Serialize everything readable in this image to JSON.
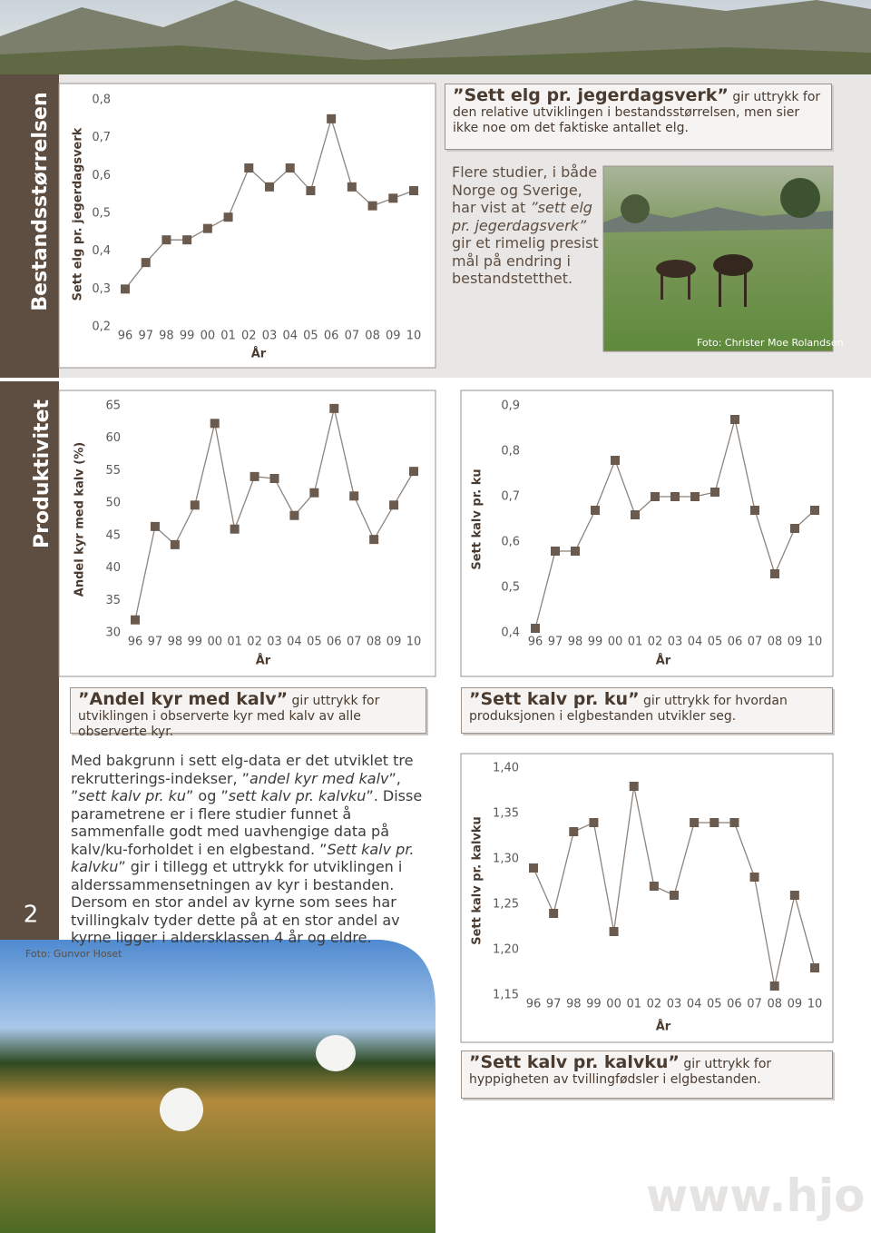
{
  "chart_data": [
    {
      "type": "line",
      "ylabel": "Sett elg pr. jegerdagsverk",
      "xlabel": "År",
      "color": "#6b5a4e",
      "line_color": "#8d837b",
      "categories": [
        "96",
        "97",
        "98",
        "99",
        "00",
        "01",
        "02",
        "03",
        "04",
        "05",
        "06",
        "07",
        "08",
        "09",
        "10"
      ],
      "values": [
        0.3,
        0.37,
        0.43,
        0.43,
        0.46,
        0.49,
        0.62,
        0.57,
        0.62,
        0.56,
        0.75,
        0.57,
        0.52,
        0.54,
        0.56
      ],
      "ylim": [
        0.2,
        0.8
      ],
      "yticks": [
        {
          "value": 0.2,
          "label": "0,2"
        },
        {
          "value": 0.3,
          "label": "0,3"
        },
        {
          "value": 0.4,
          "label": "0,4"
        },
        {
          "value": 0.5,
          "label": "0,5"
        },
        {
          "value": 0.6,
          "label": "0,6"
        },
        {
          "value": 0.7,
          "label": "0,7"
        },
        {
          "value": 0.8,
          "label": "0,8"
        }
      ]
    },
    {
      "type": "line",
      "ylabel": "Andel kyr med kalv (%)",
      "xlabel": "År",
      "color": "#6b5a4e",
      "line_color": "#8d837b",
      "categories": [
        "96",
        "97",
        "98",
        "99",
        "00",
        "01",
        "02",
        "03",
        "04",
        "05",
        "06",
        "07",
        "08",
        "09",
        "10"
      ],
      "values": [
        32.0,
        46.4,
        43.6,
        49.7,
        62.3,
        46.0,
        54.1,
        53.8,
        48.1,
        51.6,
        64.6,
        51.1,
        44.4,
        49.7,
        54.9
      ],
      "ylim": [
        30,
        65
      ],
      "yticks": [
        30,
        35,
        40,
        45,
        50,
        55,
        60,
        65
      ]
    },
    {
      "type": "line",
      "ylabel": "Sett kalv pr. ku",
      "xlabel": "År",
      "color": "#6b5a4e",
      "line_color": "#8d837b",
      "categories": [
        "96",
        "97",
        "98",
        "99",
        "00",
        "01",
        "02",
        "03",
        "04",
        "05",
        "06",
        "07",
        "08",
        "09",
        "10"
      ],
      "values": [
        0.41,
        0.58,
        0.58,
        0.67,
        0.78,
        0.66,
        0.7,
        0.7,
        0.7,
        0.71,
        0.87,
        0.67,
        0.53,
        0.63,
        0.67
      ],
      "ylim": [
        0.4,
        0.9
      ],
      "yticks": [
        {
          "value": 0.4,
          "label": "0,4"
        },
        {
          "value": 0.5,
          "label": "0,5"
        },
        {
          "value": 0.6,
          "label": "0,6"
        },
        {
          "value": 0.7,
          "label": "0,7"
        },
        {
          "value": 0.8,
          "label": "0,8"
        },
        {
          "value": 0.9,
          "label": "0,9"
        }
      ]
    },
    {
      "type": "line",
      "ylabel": "Sett kalv pr. kalvku",
      "xlabel": "År",
      "color": "#6b5a4e",
      "line_color": "#8d837b",
      "categories": [
        "96",
        "97",
        "98",
        "99",
        "00",
        "01",
        "02",
        "03",
        "04",
        "05",
        "06",
        "07",
        "08",
        "09",
        "10"
      ],
      "values": [
        1.29,
        1.24,
        1.33,
        1.34,
        1.22,
        1.38,
        1.27,
        1.26,
        1.34,
        1.34,
        1.34,
        1.28,
        1.16,
        1.26,
        1.18
      ],
      "ylim": [
        1.15,
        1.4
      ],
      "yticks": [
        {
          "value": 1.15,
          "label": "1,15"
        },
        {
          "value": 1.2,
          "label": "1,20"
        },
        {
          "value": 1.25,
          "label": "1,25"
        },
        {
          "value": 1.3,
          "label": "1,30"
        },
        {
          "value": 1.35,
          "label": "1,35"
        },
        {
          "value": 1.4,
          "label": "1,40"
        }
      ]
    }
  ],
  "sidebar": {
    "section1": "Bestandsstørrelsen",
    "section2": "Produktivitet",
    "page_number": "2"
  },
  "captions": [
    {
      "bold": "”Sett elg pr. jegerdagsverk”",
      "text": "gir uttrykk for den relative utviklingen i bestandsstørrelsen, men sier ikke noe om det faktiske antallet elg."
    },
    {
      "bold": "”Andel kyr med kalv”",
      "text": "gir uttrykk for utviklingen i observerte kyr med kalv av alle observerte kyr."
    },
    {
      "bold": "”Sett kalv pr. ku”",
      "text": "gir uttrykk for hvordan produksjonen i elgbestanden utvikler seg."
    },
    {
      "bold": "”Sett kalv pr. kalvku”",
      "text": "gir uttrykk for hyppigheten av tvillingfødsler i elgbestanden."
    }
  ],
  "intro_paragraph": [
    {
      "text": "Flere studier, i både Norge og Sverige, har vist at ",
      "italic": false
    },
    {
      "text": "”sett elg pr. jegerdagsverk”",
      "italic": true
    },
    {
      "text": " gir et rimelig presist mål på endring i bestandstetthet.",
      "italic": false
    }
  ],
  "body_paragraph": [
    {
      "text": "Med bakgrunn i sett elg-data er det utviklet tre rekrutterings-indekser, ”",
      "italic": false
    },
    {
      "text": "andel kyr med kalv",
      "italic": true
    },
    {
      "text": "”, ”",
      "italic": false
    },
    {
      "text": "sett kalv pr. ku",
      "italic": true
    },
    {
      "text": "” og ”",
      "italic": false
    },
    {
      "text": "sett kalv pr. kalvku",
      "italic": true
    },
    {
      "text": "”. Disse parametrene er i flere studier funnet å sammenfalle godt med uavhengige data på kalv/ku-forholdet i en elgbestand. ”",
      "italic": false
    },
    {
      "text": "Sett kalv pr. kalvku",
      "italic": true
    },
    {
      "text": "” gir i tillegg et uttrykk for utviklingen i alderssammensetningen av kyr i bestanden. Dersom en stor andel av kyrne som sees har tvillingkalv tyder dette på at en stor andel av kyrne ligger i aldersklassen 4 år og eldre.",
      "italic": false
    }
  ],
  "photo_credits": [
    "Foto: Christer Moe Rolandsen",
    "Foto: Gunvor Hoset"
  ],
  "watermark": "www.hjo"
}
